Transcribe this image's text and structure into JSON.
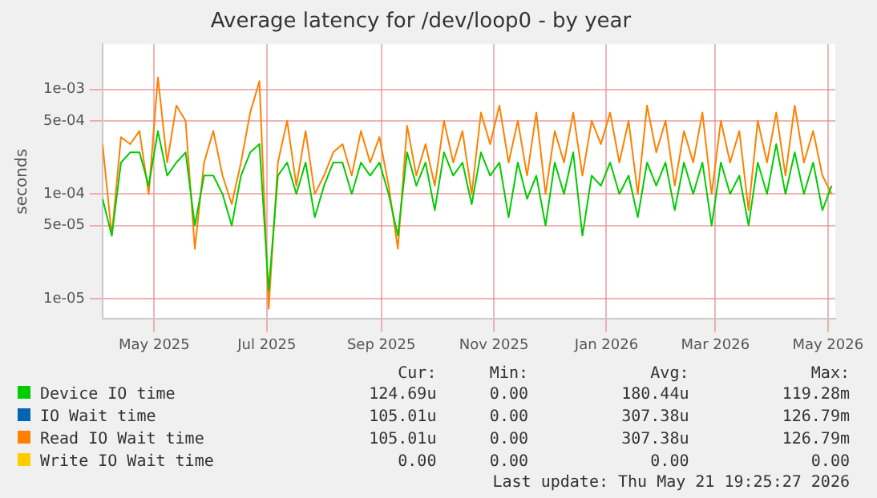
{
  "chart_data": {
    "type": "line",
    "title": "Average latency for /dev/loop0 - by year",
    "ylabel": "seconds",
    "log": "y",
    "grid": true,
    "legend": "bottom",
    "marker": "none",
    "line_style": "solid",
    "x": [
      "2025-04-03",
      "2025-04-08",
      "2025-04-13",
      "2025-04-18",
      "2025-04-23",
      "2025-04-28",
      "2025-05-03",
      "2025-05-08",
      "2025-05-13",
      "2025-05-18",
      "2025-05-23",
      "2025-05-28",
      "2025-06-02",
      "2025-06-07",
      "2025-06-12",
      "2025-06-17",
      "2025-06-22",
      "2025-06-27",
      "2025-07-02",
      "2025-07-07",
      "2025-07-12",
      "2025-07-17",
      "2025-07-22",
      "2025-07-27",
      "2025-08-01",
      "2025-08-06",
      "2025-08-11",
      "2025-08-16",
      "2025-08-21",
      "2025-08-26",
      "2025-08-31",
      "2025-09-05",
      "2025-09-10",
      "2025-09-15",
      "2025-09-20",
      "2025-09-25",
      "2025-09-30",
      "2025-10-05",
      "2025-10-10",
      "2025-10-15",
      "2025-10-20",
      "2025-10-25",
      "2025-10-30",
      "2025-11-04",
      "2025-11-09",
      "2025-11-14",
      "2025-11-19",
      "2025-11-24",
      "2025-11-29",
      "2025-12-04",
      "2025-12-09",
      "2025-12-14",
      "2025-12-19",
      "2025-12-24",
      "2025-12-29",
      "2026-01-03",
      "2026-01-08",
      "2026-01-13",
      "2026-01-18",
      "2026-01-23",
      "2026-01-28",
      "2026-02-02",
      "2026-02-07",
      "2026-02-12",
      "2026-02-17",
      "2026-02-22",
      "2026-02-27",
      "2026-03-04",
      "2026-03-09",
      "2026-03-14",
      "2026-03-19",
      "2026-03-24",
      "2026-03-29",
      "2026-04-03",
      "2026-04-08",
      "2026-04-13",
      "2026-04-18",
      "2026-04-23",
      "2026-04-28",
      "2026-05-03"
    ],
    "series": [
      {
        "name": "Device IO time",
        "color": "#00cc00",
        "values": [
          9e-05,
          4e-05,
          0.0002,
          0.00025,
          0.00025,
          0.00012,
          0.0004,
          0.00015,
          0.0002,
          0.00025,
          5e-05,
          0.00015,
          0.00015,
          0.0001,
          5e-05,
          0.00015,
          0.00025,
          0.0003,
          1.2e-05,
          0.00015,
          0.0002,
          0.0001,
          0.0002,
          6e-05,
          0.00012,
          0.0002,
          0.0002,
          0.0001,
          0.0002,
          0.00015,
          0.0002,
          0.0001,
          4e-05,
          0.00025,
          0.00012,
          0.0002,
          7e-05,
          0.00025,
          0.00015,
          0.0002,
          8e-05,
          0.00025,
          0.00015,
          0.0002,
          6e-05,
          0.0002,
          9e-05,
          0.00015,
          5e-05,
          0.0002,
          0.0001,
          0.00025,
          4e-05,
          0.00015,
          0.00012,
          0.0002,
          0.0001,
          0.00015,
          6e-05,
          0.0002,
          0.00012,
          0.0002,
          7e-05,
          0.0002,
          0.0001,
          0.0002,
          5e-05,
          0.0002,
          0.0001,
          0.00015,
          5e-05,
          0.0002,
          0.0001,
          0.0003,
          0.0001,
          0.00025,
          0.0001,
          0.0002,
          7e-05,
          0.00012
        ]
      },
      {
        "name": "IO Wait time",
        "color": "#0066b3",
        "values": [
          null,
          null,
          null,
          null,
          null,
          null,
          null,
          null,
          null,
          null,
          null,
          null,
          null,
          null,
          null,
          null,
          null,
          null,
          null,
          null,
          null,
          null,
          null,
          null,
          null,
          null,
          null,
          null,
          null,
          null,
          null,
          null,
          null,
          null,
          null,
          null,
          null,
          null,
          null,
          null,
          null,
          null,
          null,
          null,
          null,
          null,
          null,
          null,
          null,
          null,
          null,
          null,
          null,
          null,
          null,
          null,
          null,
          null,
          null,
          null,
          null,
          null,
          null,
          null,
          null,
          null,
          null,
          null,
          null,
          null,
          null,
          null,
          null,
          null,
          null,
          null,
          null,
          null,
          null,
          null
        ]
      },
      {
        "name": "Read IO Wait time",
        "color": "#ff8000",
        "values": [
          0.0003,
          4e-05,
          0.00035,
          0.0003,
          0.0004,
          0.0001,
          0.0013,
          0.0002,
          0.0007,
          0.0005,
          3e-05,
          0.0002,
          0.0004,
          0.00015,
          8e-05,
          0.0002,
          0.0006,
          0.0012,
          8e-06,
          0.0002,
          0.0005,
          0.00012,
          0.0004,
          0.0001,
          0.00015,
          0.00025,
          0.0003,
          0.00015,
          0.0004,
          0.0002,
          0.00035,
          0.00012,
          3e-05,
          0.00045,
          0.00015,
          0.0003,
          0.00012,
          0.0005,
          0.0002,
          0.0004,
          0.0001,
          0.0006,
          0.0003,
          0.0007,
          0.0002,
          0.0005,
          0.00015,
          0.0006,
          0.0001,
          0.0004,
          0.0002,
          0.0006,
          0.00015,
          0.0005,
          0.0003,
          0.0006,
          0.0002,
          0.0005,
          0.0001,
          0.0007,
          0.00025,
          0.0005,
          0.00012,
          0.0004,
          0.0002,
          0.0006,
          0.0001,
          0.0005,
          0.0002,
          0.0004,
          7e-05,
          0.0005,
          0.0002,
          0.0006,
          0.00015,
          0.0007,
          0.0002,
          0.0004,
          0.00015,
          0.0001
        ]
      },
      {
        "name": "Write IO Wait time",
        "color": "#ffcc00",
        "values": [
          null,
          null,
          null,
          null,
          null,
          null,
          null,
          null,
          null,
          null,
          null,
          null,
          null,
          null,
          null,
          null,
          null,
          null,
          null,
          null,
          null,
          null,
          null,
          null,
          null,
          null,
          null,
          null,
          null,
          null,
          null,
          null,
          null,
          null,
          null,
          null,
          null,
          null,
          null,
          null,
          null,
          null,
          null,
          null,
          null,
          null,
          null,
          null,
          null,
          null,
          null,
          null,
          null,
          null,
          null,
          null,
          null,
          null,
          null,
          null,
          null,
          null,
          null,
          null,
          null,
          null,
          null,
          null,
          null,
          null,
          null,
          null,
          null,
          null,
          null,
          null,
          null,
          null,
          null,
          null
        ]
      }
    ],
    "xlim": [
      "2025-04-03",
      "2026-05-05"
    ],
    "xticks": [
      {
        "value": "2025-05-01",
        "label": "May 2025"
      },
      {
        "value": "2025-07-01",
        "label": "Jul 2025"
      },
      {
        "value": "2025-09-01",
        "label": "Sep 2025"
      },
      {
        "value": "2025-11-01",
        "label": "Nov 2025"
      },
      {
        "value": "2026-01-01",
        "label": "Jan 2026"
      },
      {
        "value": "2026-03-01",
        "label": "Mar 2026"
      },
      {
        "value": "2026-05-01",
        "label": "May 2026"
      }
    ],
    "ylim": [
      6.4e-06,
      0.0027
    ],
    "yticks": [
      {
        "value": 1e-05,
        "label": "1e-05"
      },
      {
        "value": 5e-05,
        "label": "5e-05"
      },
      {
        "value": 0.0001,
        "label": "1e-04"
      },
      {
        "value": 0.0005,
        "label": "5e-04"
      },
      {
        "value": 0.001,
        "label": "1e-03"
      }
    ],
    "annotations": [
      "Cur:",
      "Min:",
      "Avg:",
      "Max:",
      "124.69u",
      "0.00",
      "180.44u",
      "119.28m",
      "105.01u",
      "0.00",
      "307.38u",
      "126.79m",
      "105.01u",
      "0.00",
      "307.38u",
      "126.79m",
      "0.00",
      "0.00",
      "0.00",
      "0.00",
      "Last update: Thu May 21 19:25:27 2026"
    ]
  }
}
